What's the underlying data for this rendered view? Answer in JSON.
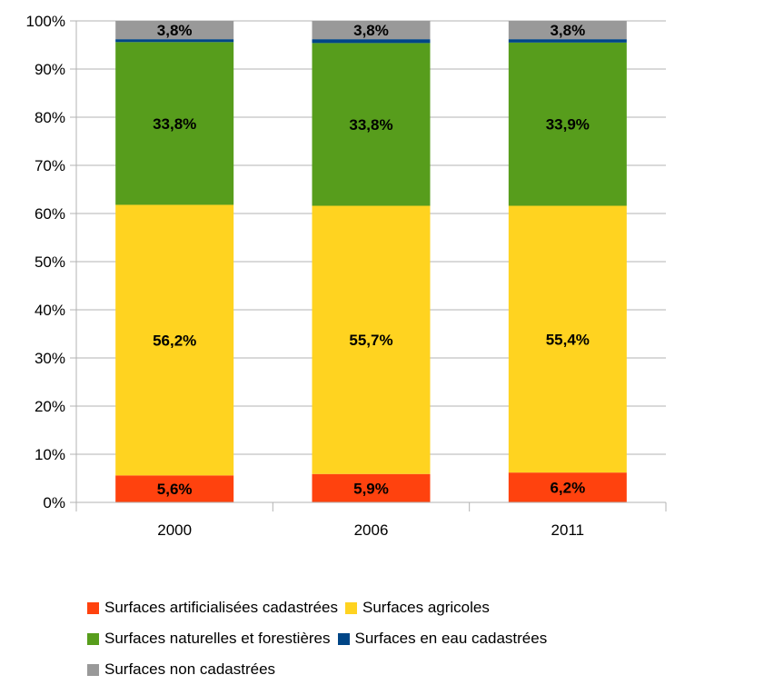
{
  "chart_data": {
    "type": "bar",
    "stacked": true,
    "percent": true,
    "categories": [
      "2000",
      "2006",
      "2011"
    ],
    "ylim": [
      0,
      100
    ],
    "yticks": [
      "0%",
      "10%",
      "20%",
      "30%",
      "40%",
      "50%",
      "60%",
      "70%",
      "80%",
      "90%",
      "100%"
    ],
    "grid": true,
    "legend_position": "bottom",
    "series": [
      {
        "name": "Surfaces artificialisées cadastrées",
        "color": "#ff420e",
        "values": [
          5.6,
          5.9,
          6.2
        ],
        "labels": [
          "5,6%",
          "5,9%",
          "6,2%"
        ]
      },
      {
        "name": "Surfaces agricoles",
        "color": "#ffd320",
        "values": [
          56.2,
          55.7,
          55.4
        ],
        "labels": [
          "56,2%",
          "55,7%",
          "55,4%"
        ]
      },
      {
        "name": "Surfaces naturelles et forestières",
        "color": "#579d1c",
        "values": [
          33.8,
          33.8,
          33.9
        ],
        "labels": [
          "33,8%",
          "33,8%",
          "33,9%"
        ]
      },
      {
        "name": "Surfaces en eau cadastrées",
        "color": "#004586",
        "values": [
          0.6,
          0.8,
          0.7
        ],
        "labels": [
          "",
          "",
          ""
        ]
      },
      {
        "name": "Surfaces non cadastrées",
        "color": "#999999",
        "values": [
          3.8,
          3.8,
          3.8
        ],
        "labels": [
          "3,8%",
          "3,8%",
          "3,8%"
        ]
      }
    ]
  }
}
